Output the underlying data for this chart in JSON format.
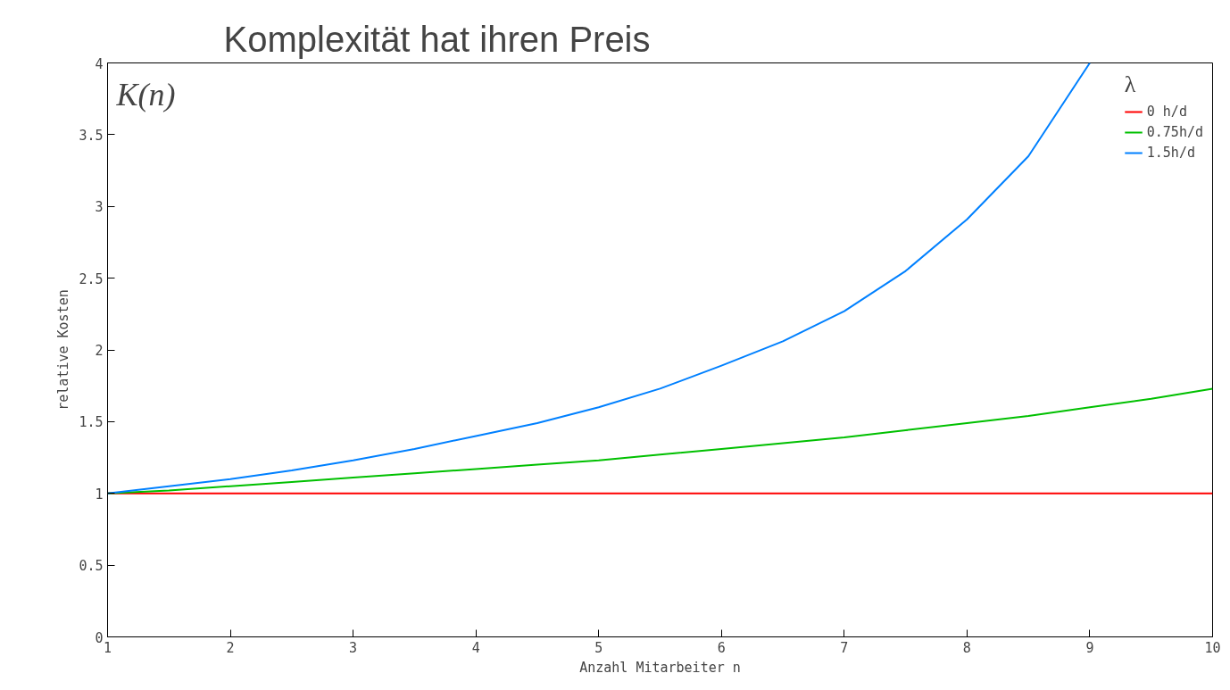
{
  "chart_data": {
    "type": "line",
    "title": "Komplexität hat ihren Preis",
    "xlabel": "Anzahl Mitarbeiter n",
    "ylabel": "relative Kosten",
    "legend_title": "λ",
    "annotations": [
      "K(n)"
    ],
    "x": [
      1,
      1.5,
      2,
      2.5,
      3,
      3.5,
      4,
      4.5,
      5,
      5.5,
      6,
      6.5,
      7,
      7.5,
      8,
      8.5,
      9,
      9.5,
      10
    ],
    "series": [
      {
        "name": "0 h/d",
        "color": "#ff0000",
        "values": [
          1,
          1,
          1,
          1,
          1,
          1,
          1,
          1,
          1,
          1,
          1,
          1,
          1,
          1,
          1,
          1,
          1,
          1,
          1
        ]
      },
      {
        "name": "0.75h/d",
        "color": "#00c000",
        "values": [
          1,
          1.02,
          1.05,
          1.08,
          1.11,
          1.14,
          1.17,
          1.2,
          1.23,
          1.27,
          1.31,
          1.35,
          1.39,
          1.44,
          1.49,
          1.54,
          1.6,
          1.66,
          1.73
        ]
      },
      {
        "name": "1.5h/d",
        "color": "#0080ff",
        "values": [
          1,
          1.05,
          1.1,
          1.16,
          1.23,
          1.31,
          1.4,
          1.49,
          1.6,
          1.73,
          1.89,
          2.06,
          2.27,
          2.55,
          2.91,
          3.35,
          4.0,
          null,
          null
        ]
      }
    ],
    "xlim": [
      1,
      10
    ],
    "ylim": [
      0,
      4
    ],
    "xticks": [
      1,
      2,
      3,
      4,
      5,
      6,
      7,
      8,
      9,
      10
    ],
    "yticks": [
      0,
      0.5,
      1,
      1.5,
      2,
      2.5,
      3,
      3.5,
      4
    ],
    "grid": false,
    "legend": "top right",
    "marker": "none",
    "line_style": "solid"
  }
}
